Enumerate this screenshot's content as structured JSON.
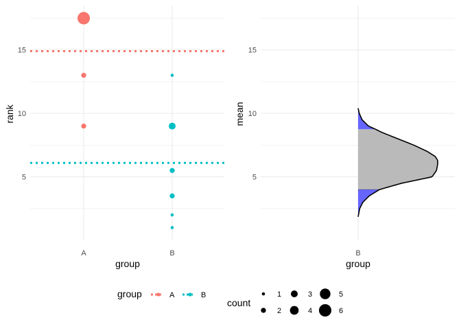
{
  "chart_data": [
    {
      "type": "scatter",
      "panel": "left",
      "xlabel": "group",
      "ylabel": "rank",
      "categories": [
        "A",
        "B"
      ],
      "ylim": [
        0.0,
        18.5
      ],
      "yticks": [
        5,
        10,
        15
      ],
      "grid": true,
      "points": [
        {
          "group": "A",
          "y": 17.5,
          "count": 6
        },
        {
          "group": "A",
          "y": 13,
          "count": 2
        },
        {
          "group": "A",
          "y": 9,
          "count": 2
        },
        {
          "group": "B",
          "y": 13,
          "count": 1
        },
        {
          "group": "B",
          "y": 9,
          "count": 3
        },
        {
          "group": "B",
          "y": 5.5,
          "count": 2
        },
        {
          "group": "B",
          "y": 3.5,
          "count": 2
        },
        {
          "group": "B",
          "y": 2,
          "count": 1
        },
        {
          "group": "B",
          "y": 1,
          "count": 1
        }
      ],
      "hlines": [
        {
          "group": "A",
          "y": 14.9,
          "style": "dotted"
        },
        {
          "group": "B",
          "y": 6.1,
          "style": "dotted"
        }
      ]
    },
    {
      "type": "area",
      "panel": "right",
      "subtype": "density",
      "xlabel": "group",
      "ylabel": "mean",
      "categories": [
        "B"
      ],
      "ylim": [
        0.0,
        18.5
      ],
      "yticks": [
        5,
        10,
        15
      ],
      "grid": true,
      "density_y": [
        1.85,
        2.5,
        3.0,
        3.5,
        4.0,
        4.5,
        5.0,
        5.5,
        6.0,
        6.3,
        6.6,
        7.0,
        7.5,
        8.0,
        8.5,
        8.75,
        9.0,
        9.5,
        10.0,
        10.4
      ],
      "density_width": [
        0.0,
        0.02,
        0.06,
        0.14,
        0.27,
        0.55,
        0.93,
        0.985,
        1.0,
        1.0,
        0.97,
        0.87,
        0.7,
        0.5,
        0.3,
        0.22,
        0.13,
        0.05,
        0.015,
        0.0
      ],
      "inner_interval": [
        4.0,
        8.75
      ],
      "fills": {
        "tails": "#6666ff",
        "interval": "#bababa"
      }
    }
  ],
  "legend": {
    "group_title": "group",
    "groups": [
      {
        "label": "A",
        "color": "#F8766D"
      },
      {
        "label": "B",
        "color": "#00BFC4"
      }
    ],
    "count_title": "count",
    "counts": [
      "1",
      "2",
      "3",
      "4",
      "5",
      "6"
    ]
  },
  "colors": {
    "A": "#F8766D",
    "B": "#00BFC4",
    "grid": "#ebebeb"
  }
}
